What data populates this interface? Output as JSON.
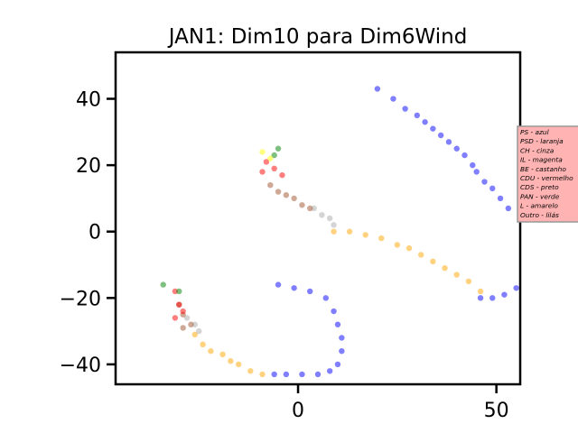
{
  "chart_data": {
    "type": "scatter",
    "title": "JAN1: Dim10 para Dim6Wind",
    "xlabel": "",
    "ylabel": "",
    "xlim": [
      -46,
      56
    ],
    "ylim": [
      -46,
      54
    ],
    "x_ticks": [
      0,
      50
    ],
    "y_ticks": [
      -40,
      -20,
      0,
      20,
      40
    ],
    "x_tick_labels": [
      "0",
      "50"
    ],
    "y_tick_labels": [
      "−40",
      "−20",
      "0",
      "20",
      "40"
    ],
    "grid": false,
    "legend_placement": "right, outside plot",
    "legend_bg": "#ffb3b3",
    "legend": [
      {
        "label": "PS - azul",
        "color": "#0000ff"
      },
      {
        "label": "PSD - laranja",
        "color": "#ffa500"
      },
      {
        "label": "CH - cinza",
        "color": "#aaaaaa"
      },
      {
        "label": "IL - magenta",
        "color": "#ff00ff"
      },
      {
        "label": "BE - castanho",
        "color": "#a0522d"
      },
      {
        "label": "CDU - vermelho",
        "color": "#ff0000"
      },
      {
        "label": "CDS - preto",
        "color": "#000000"
      },
      {
        "label": "PAN - verde",
        "color": "#008000"
      },
      {
        "label": "L - amarelo",
        "color": "#ffff00"
      },
      {
        "label": "Outro - lilás",
        "color": "#c8a2c8"
      }
    ],
    "series": [
      {
        "party": "PS",
        "color": "#0000ff",
        "points": [
          [
            20,
            43
          ],
          [
            24,
            40
          ],
          [
            27,
            37
          ],
          [
            30,
            35
          ],
          [
            32,
            33
          ],
          [
            34,
            31
          ],
          [
            36,
            29
          ],
          [
            38,
            27
          ],
          [
            40,
            25
          ],
          [
            42,
            23
          ],
          [
            44,
            20
          ],
          [
            45,
            18
          ],
          [
            47,
            15
          ],
          [
            49,
            13
          ],
          [
            51,
            10
          ],
          [
            53,
            7
          ],
          [
            -5,
            -16
          ],
          [
            -1,
            -17
          ],
          [
            3,
            -18
          ],
          [
            7,
            -20
          ],
          [
            9,
            -24
          ],
          [
            10,
            -28
          ],
          [
            11,
            -32
          ],
          [
            11,
            -36
          ],
          [
            10,
            -40
          ],
          [
            8,
            -42
          ],
          [
            5,
            -43
          ],
          [
            1,
            -43
          ],
          [
            -3,
            -43
          ],
          [
            -6,
            -43
          ],
          [
            46,
            -20
          ],
          [
            49,
            -20
          ],
          [
            52,
            -19
          ],
          [
            55,
            -17
          ]
        ]
      },
      {
        "party": "PSD",
        "color": "#ffa500",
        "points": [
          [
            9,
            0
          ],
          [
            13,
            0
          ],
          [
            17,
            -1
          ],
          [
            21,
            -2
          ],
          [
            25,
            -4
          ],
          [
            28,
            -5
          ],
          [
            31,
            -7
          ],
          [
            34,
            -9
          ],
          [
            37,
            -11
          ],
          [
            40,
            -13
          ],
          [
            43,
            -15
          ],
          [
            46,
            -18
          ],
          [
            -26,
            -31
          ],
          [
            -24,
            -34
          ],
          [
            -22,
            -36
          ],
          [
            -19,
            -37
          ],
          [
            -17,
            -39
          ],
          [
            -15,
            -40
          ],
          [
            -12,
            -42
          ],
          [
            -9,
            -43
          ]
        ]
      },
      {
        "party": "CH",
        "color": "#aaaaaa",
        "points": [
          [
            4,
            7
          ],
          [
            6,
            5
          ],
          [
            8,
            4
          ],
          [
            9,
            2
          ],
          [
            -28,
            -26
          ],
          [
            -26,
            -28
          ],
          [
            -25,
            -30
          ]
        ]
      },
      {
        "party": "BE",
        "color": "#a0522d",
        "points": [
          [
            -7,
            14
          ],
          [
            -5,
            12
          ],
          [
            -3,
            11
          ],
          [
            -1,
            10
          ],
          [
            1,
            8
          ],
          [
            3,
            7
          ],
          [
            -30,
            -22
          ],
          [
            -29,
            -25
          ],
          [
            -27,
            -28
          ],
          [
            -29,
            -29
          ]
        ]
      },
      {
        "party": "CDU",
        "color": "#ff0000",
        "points": [
          [
            -8,
            21
          ],
          [
            -6,
            19
          ],
          [
            -4,
            17
          ],
          [
            -9,
            18
          ],
          [
            -31,
            -18
          ],
          [
            -30,
            -22
          ],
          [
            -29,
            -24
          ],
          [
            -31,
            -26
          ]
        ]
      },
      {
        "party": "PAN",
        "color": "#008000",
        "points": [
          [
            -6,
            23
          ],
          [
            -5,
            25
          ],
          [
            -34,
            -16
          ],
          [
            -30,
            -18
          ]
        ]
      },
      {
        "party": "L",
        "color": "#ffff00",
        "points": [
          [
            -9,
            24
          ],
          [
            -7,
            22
          ]
        ]
      }
    ]
  }
}
